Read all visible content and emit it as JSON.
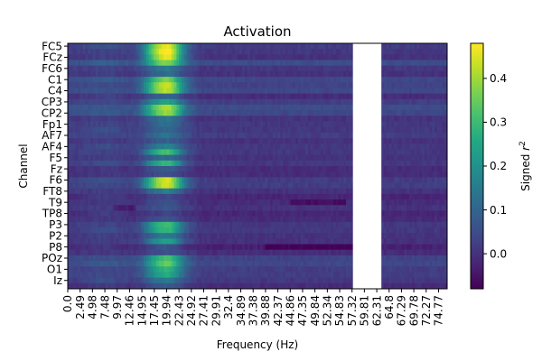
{
  "chart_data": {
    "type": "heatmap",
    "title": "Activation",
    "xlabel": "Frequency (Hz)",
    "ylabel": "Channel",
    "colorbar_label": "Signed r²",
    "colormap": "viridis",
    "color_range": [
      -0.08,
      0.48
    ],
    "colorbar_ticks": [
      "0.0",
      "0.1",
      "0.2",
      "0.3",
      "0.4"
    ],
    "colorbar_tick_values": [
      0.0,
      0.1,
      0.2,
      0.3,
      0.4
    ],
    "channels_labeled": [
      "FC5",
      "FCz",
      "FC6",
      "C1",
      "C4",
      "CP3",
      "CP2",
      "Fp1",
      "AF7",
      "AF4",
      "F5",
      "Fz",
      "F6",
      "FT8",
      "T9",
      "TP8",
      "P3",
      "P2",
      "P8",
      "POz",
      "O1",
      "Iz"
    ],
    "channel_count": 44,
    "frequency_ticks": [
      "0.0",
      "2.49",
      "4.98",
      "7.48",
      "9.97",
      "12.46",
      "14.95",
      "17.45",
      "19.94",
      "22.43",
      "24.92",
      "27.41",
      "29.91",
      "32.4",
      "34.89",
      "37.38",
      "39.88",
      "42.37",
      "44.86",
      "47.35",
      "49.84",
      "52.34",
      "54.83",
      "57.32",
      "59.81",
      "62.31",
      "64.8",
      "67.29",
      "69.78",
      "72.27",
      "74.77"
    ],
    "frequency_range": [
      0,
      76.5
    ],
    "masked_band_hz": [
      57.5,
      63.0
    ],
    "high_activation_band_hz": [
      14.0,
      25.0
    ],
    "peak_value": 0.45,
    "peak_frequency_hz": 19.9,
    "peak_channels": [
      "FC5",
      "FCz",
      "Fz",
      "CP3",
      "C1"
    ],
    "background_value": 0.0
  }
}
